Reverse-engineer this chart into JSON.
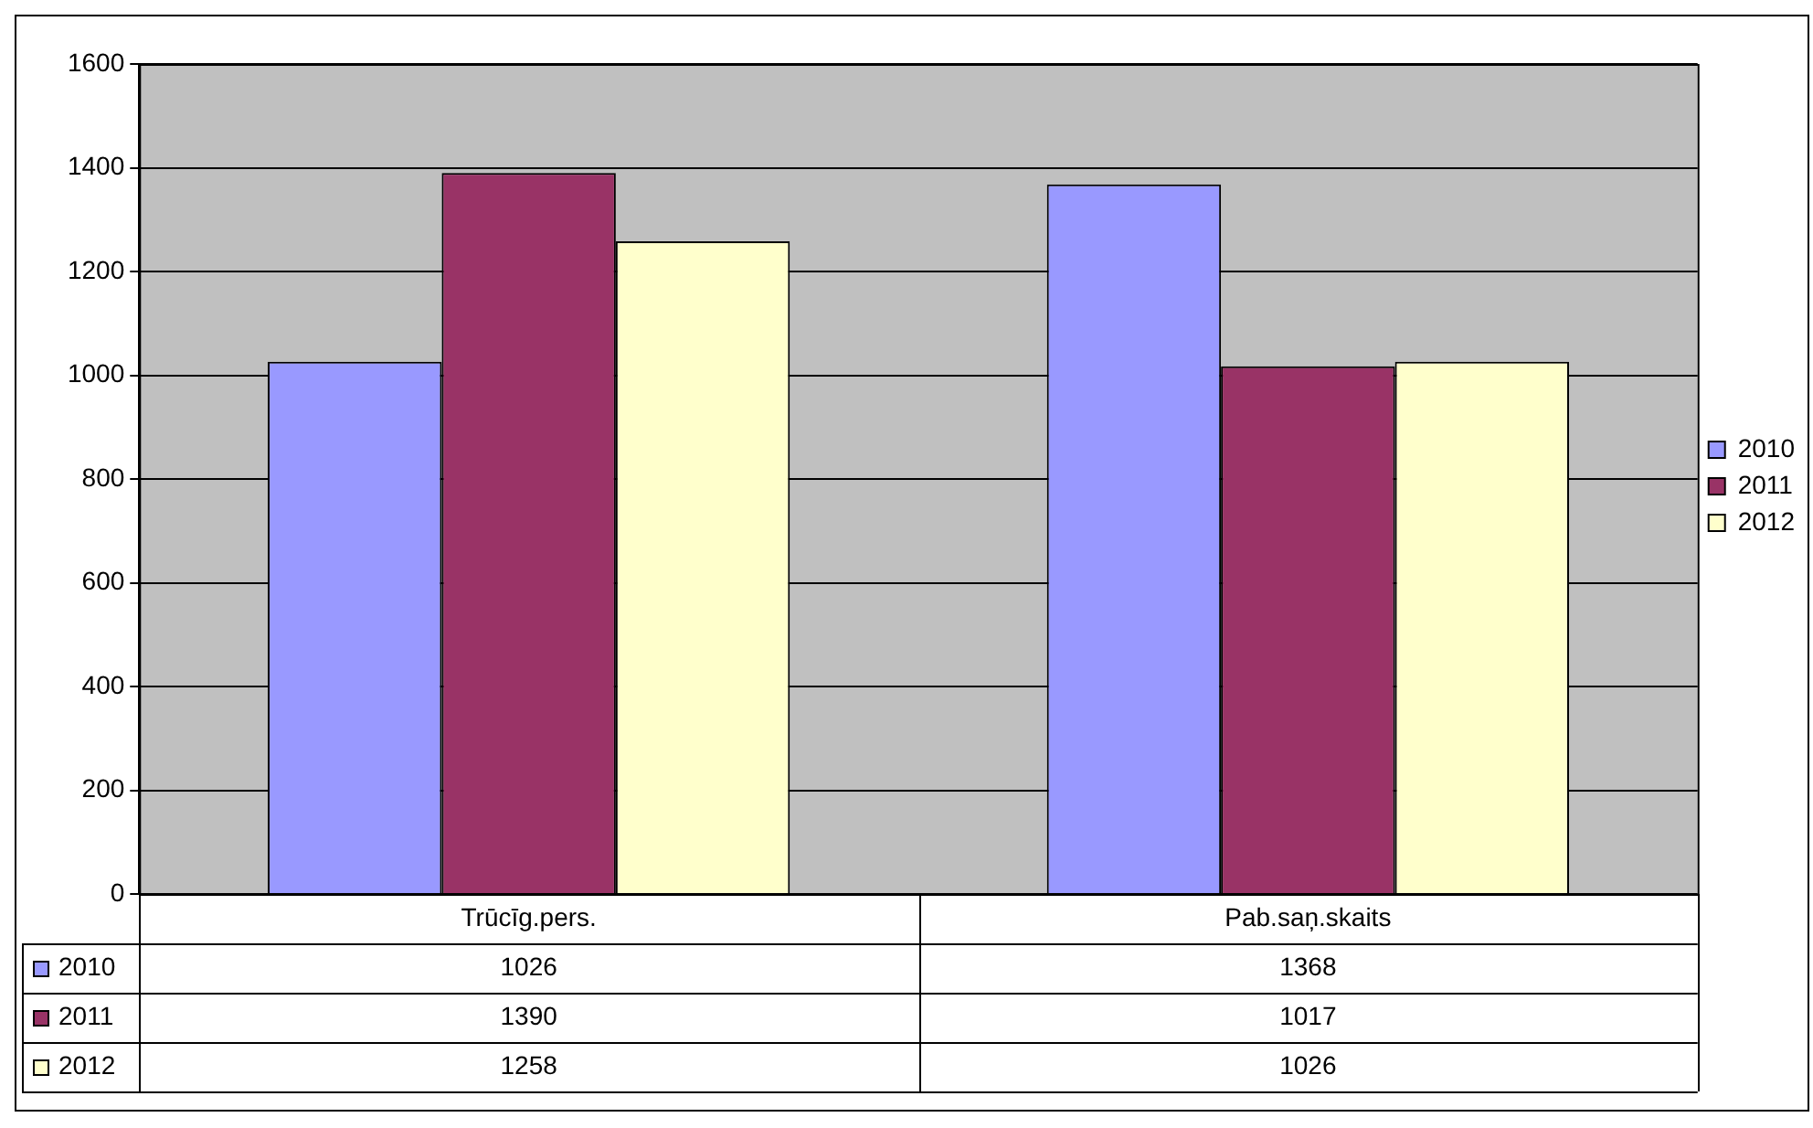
{
  "chart_data": {
    "type": "bar",
    "categories": [
      "Trūcīg.pers.",
      "Pab.saņ.skaits"
    ],
    "series": [
      {
        "name": "2010",
        "color": "#9999ff",
        "values": [
          1026,
          1368
        ]
      },
      {
        "name": "2011",
        "color": "#993366",
        "values": [
          1390,
          1017
        ]
      },
      {
        "name": "2012",
        "color": "#ffffcc",
        "values": [
          1258,
          1026
        ]
      }
    ],
    "ylim": [
      0,
      1600
    ],
    "yticks": [
      0,
      200,
      400,
      600,
      800,
      1000,
      1200,
      1400,
      1600
    ],
    "grid": "y",
    "legend": "right",
    "data_labels": true
  }
}
